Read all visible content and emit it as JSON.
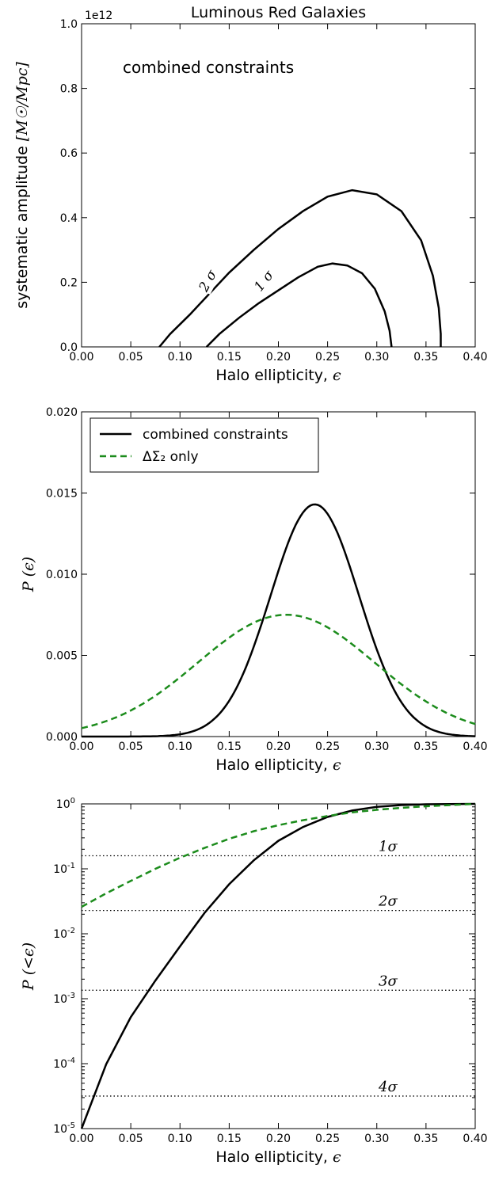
{
  "chart_data": [
    {
      "type": "line",
      "panel": "contour",
      "title": "Luminous Red Galaxies",
      "annotation": "combined constraints",
      "xlabel": "Halo ellipticity, ",
      "xlabel_symbol": "ϵ",
      "ylabel": "systematic amplitude ",
      "ylabel_units": "[M☉/Mpc]",
      "offset_text": "1e12",
      "xlim": [
        0,
        0.4
      ],
      "ylim": [
        0,
        1.0
      ],
      "x_ticks": [
        "0.00",
        "0.05",
        "0.10",
        "0.15",
        "0.20",
        "0.25",
        "0.30",
        "0.35",
        "0.40"
      ],
      "y_ticks": [
        "0.0",
        "0.2",
        "0.4",
        "0.6",
        "0.8",
        "1.0"
      ],
      "series": [
        {
          "name": "1σ contour",
          "label": "1 σ",
          "color": "#000000",
          "points": [
            [
              0.127,
              0.0
            ],
            [
              0.14,
              0.04
            ],
            [
              0.16,
              0.09
            ],
            [
              0.18,
              0.135
            ],
            [
              0.2,
              0.175
            ],
            [
              0.22,
              0.215
            ],
            [
              0.24,
              0.248
            ],
            [
              0.255,
              0.258
            ],
            [
              0.27,
              0.252
            ],
            [
              0.285,
              0.228
            ],
            [
              0.298,
              0.18
            ],
            [
              0.308,
              0.11
            ],
            [
              0.313,
              0.05
            ],
            [
              0.315,
              0.0
            ]
          ]
        },
        {
          "name": "2σ contour",
          "label": "2 σ",
          "color": "#000000",
          "points": [
            [
              0.079,
              0.0
            ],
            [
              0.09,
              0.04
            ],
            [
              0.11,
              0.1
            ],
            [
              0.13,
              0.165
            ],
            [
              0.15,
              0.23
            ],
            [
              0.175,
              0.3
            ],
            [
              0.2,
              0.365
            ],
            [
              0.225,
              0.42
            ],
            [
              0.25,
              0.465
            ],
            [
              0.275,
              0.485
            ],
            [
              0.3,
              0.472
            ],
            [
              0.325,
              0.42
            ],
            [
              0.345,
              0.33
            ],
            [
              0.357,
              0.22
            ],
            [
              0.363,
              0.12
            ],
            [
              0.365,
              0.04
            ],
            [
              0.365,
              0.0
            ]
          ]
        }
      ]
    },
    {
      "type": "line",
      "panel": "pdf",
      "xlabel": "Halo ellipticity, ",
      "xlabel_symbol": "ϵ",
      "ylabel": "P (ϵ)",
      "xlim": [
        0,
        0.4
      ],
      "ylim": [
        0,
        0.02
      ],
      "x_ticks": [
        "0.00",
        "0.05",
        "0.10",
        "0.15",
        "0.20",
        "0.25",
        "0.30",
        "0.35",
        "0.40"
      ],
      "y_ticks": [
        "0.000",
        "0.005",
        "0.010",
        "0.015",
        "0.020"
      ],
      "legend_location": "upper-left",
      "series": [
        {
          "name": "combined constraints",
          "color": "#000000",
          "style": "solid",
          "gaussian": {
            "amplitude": 0.0143,
            "mean": 0.237,
            "sigma": 0.045
          }
        },
        {
          "name": "ΔΣ₂ only",
          "color": "#1c8c1c",
          "style": "dashed",
          "gaussian": {
            "amplitude": 0.0075,
            "mean": 0.208,
            "sigma": 0.09
          }
        }
      ]
    },
    {
      "type": "line",
      "panel": "cdf",
      "xlabel": "Halo ellipticity, ",
      "xlabel_symbol": "ϵ",
      "ylabel": "P (<ϵ)",
      "yscale": "log",
      "xlim": [
        0,
        0.4
      ],
      "ylim": [
        1e-05,
        1
      ],
      "x_ticks": [
        "0.00",
        "0.05",
        "0.10",
        "0.15",
        "0.20",
        "0.25",
        "0.30",
        "0.35",
        "0.40"
      ],
      "y_ticks": [
        {
          "base": "10",
          "exp": "0",
          "value": 1
        },
        {
          "base": "10",
          "exp": "-1",
          "value": 0.1
        },
        {
          "base": "10",
          "exp": "-2",
          "value": 0.01
        },
        {
          "base": "10",
          "exp": "-3",
          "value": 0.001
        },
        {
          "base": "10",
          "exp": "-4",
          "value": 0.0001
        },
        {
          "base": "10",
          "exp": "-5",
          "value": 1e-05
        }
      ],
      "sigma_levels": [
        {
          "label": "1σ",
          "value": 0.159
        },
        {
          "label": "2σ",
          "value": 0.0228
        },
        {
          "label": "3σ",
          "value": 0.00135
        },
        {
          "label": "4σ",
          "value": 3.17e-05
        }
      ],
      "series": [
        {
          "name": "combined constraints",
          "color": "#000000",
          "style": "solid",
          "x": [
            0.0,
            0.025,
            0.05,
            0.075,
            0.1,
            0.125,
            0.15,
            0.175,
            0.2,
            0.225,
            0.25,
            0.275,
            0.3,
            0.325,
            0.35,
            0.375,
            0.4
          ],
          "y": [
            1e-05,
            9.8e-05,
            0.00052,
            0.0019,
            0.0064,
            0.021,
            0.058,
            0.135,
            0.27,
            0.44,
            0.63,
            0.79,
            0.9,
            0.96,
            0.985,
            0.995,
            1.0
          ]
        },
        {
          "name": "ΔΣ₂ only",
          "color": "#1c8c1c",
          "style": "dashed",
          "x": [
            0.0,
            0.025,
            0.05,
            0.075,
            0.1,
            0.125,
            0.15,
            0.175,
            0.2,
            0.225,
            0.25,
            0.275,
            0.3,
            0.325,
            0.35,
            0.375,
            0.4
          ],
          "y": [
            0.026,
            0.042,
            0.065,
            0.1,
            0.148,
            0.21,
            0.29,
            0.38,
            0.47,
            0.56,
            0.65,
            0.74,
            0.81,
            0.87,
            0.92,
            0.96,
            1.0
          ]
        }
      ]
    }
  ]
}
